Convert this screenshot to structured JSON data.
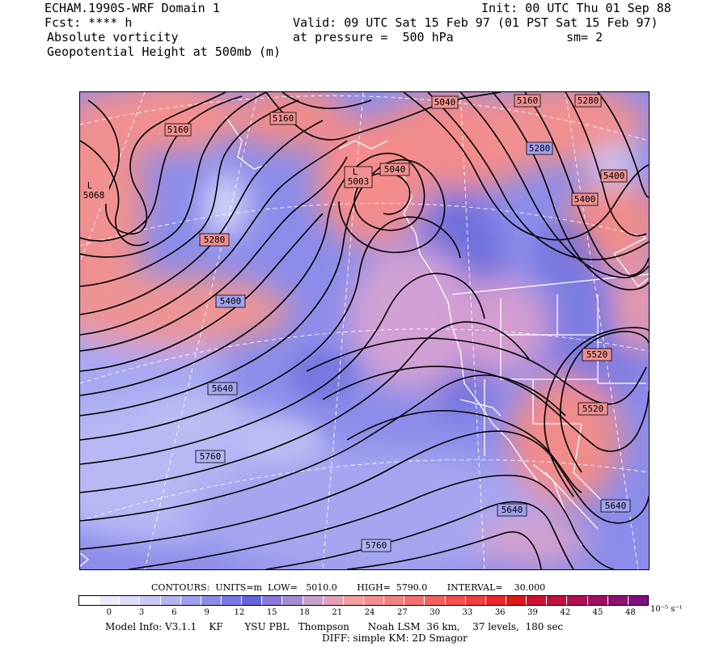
{
  "header": {
    "title": "ECHAM.1990S-WRF Domain 1",
    "fcst": "Fcst: **** h",
    "field1": "Absolute vorticity",
    "field2": "Geopotential Height at 500mb (m)",
    "init": "Init: 00 UTC Thu 01 Sep 88",
    "valid": "Valid: 09 UTC Sat 15 Feb 97 (01 PST Sat 15 Feb 97)",
    "pressure": "at pressure =  500 hPa",
    "sm": "sm= 2"
  },
  "map": {
    "contour_labels": [
      "5160",
      "5160",
      "5040",
      "5160",
      "5280",
      "5280",
      "5400",
      "5400",
      "L",
      "5068",
      "L",
      "5003",
      "5040",
      "5280",
      "5400",
      "5520",
      "5640",
      "5520",
      "5760",
      "5640",
      "5640",
      "5760"
    ]
  },
  "contours": {
    "info": "CONTOURS:  UNITS=m  LOW=   5010.0       HIGH=  5790.0       INTERVAL=    30.000",
    "units": "m",
    "low": 5010.0,
    "high": 5790.0,
    "interval": 30.0
  },
  "colorbar": {
    "ticks": [
      "0",
      "3",
      "6",
      "9",
      "12",
      "15",
      "18",
      "21",
      "24",
      "27",
      "30",
      "33",
      "36",
      "39",
      "42",
      "45",
      "48"
    ],
    "units": "10⁻⁵ s⁻¹",
    "colors": [
      "#ffffff",
      "#ececfb",
      "#dcdcf8",
      "#c8c8f4",
      "#b4b4f0",
      "#a0a0ee",
      "#8c8ce8",
      "#7878e4",
      "#6464dc",
      "#8c78dc",
      "#a48cd4",
      "#c8a0d0",
      "#e4a0b4",
      "#f0a0a0",
      "#f49090",
      "#f48080",
      "#f47070",
      "#f46060",
      "#f45050",
      "#f04040",
      "#e82828",
      "#dc1818",
      "#d01030",
      "#c01040",
      "#b01050",
      "#a01060",
      "#901070",
      "#801080"
    ]
  },
  "model": {
    "info": "Model Info: V3.1.1    KF       YSU PBL   Thompson      Noah LSM  36 km,    37 levels,  180 sec",
    "diff": "DIFF: simple KM: 2D Smagor"
  }
}
